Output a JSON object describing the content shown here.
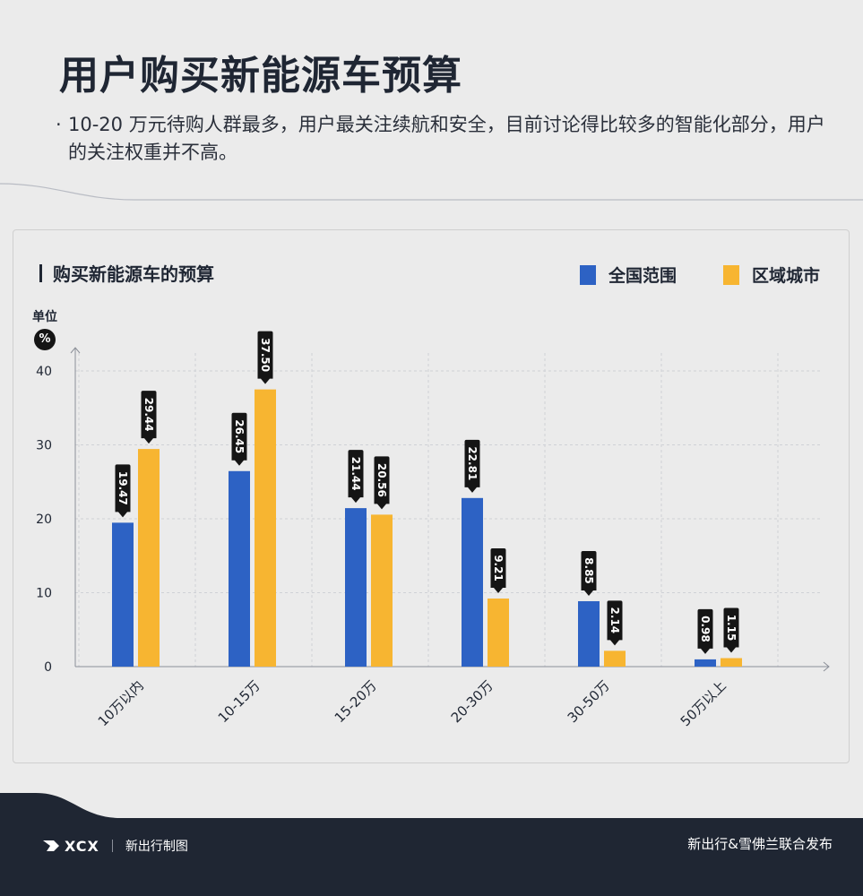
{
  "header": {
    "title": "用户购买新能源车预算",
    "bullet": "·",
    "description": "10-20 万元待购人群最多，用户最关注续航和安全，目前讨论得比较多的智能化部分，用户的关注权重并不高。"
  },
  "chart_header": {
    "title": "购买新能源车的预算",
    "unit_label": "单位",
    "unit_symbol": "%"
  },
  "colors": {
    "national": "#2d62c4",
    "regional": "#f7b531",
    "label_bg": "#151515",
    "footer_bg": "#1f2633"
  },
  "chart_data": {
    "type": "bar",
    "title": "购买新能源车的预算",
    "ylabel": "单位 %",
    "categories": [
      "10万以内",
      "10-15万",
      "15-20万",
      "20-30万",
      "30-50万",
      "50万以上"
    ],
    "series": [
      {
        "name": "全国范围",
        "values": [
          19.47,
          26.45,
          21.44,
          22.81,
          8.85,
          0.98
        ],
        "labels": [
          "19.47",
          "26.45",
          "21.44",
          "22.81",
          "8.85",
          "0.98"
        ]
      },
      {
        "name": "区域城市",
        "values": [
          29.44,
          37.5,
          20.56,
          9.21,
          2.14,
          1.15
        ],
        "labels": [
          "29.44",
          "37.50",
          "20.56",
          "9.21",
          "2.14",
          "1.15"
        ]
      }
    ],
    "y_ticks": [
      "0",
      "10",
      "20",
      "30",
      "40"
    ],
    "ylim": [
      0,
      40
    ],
    "grid": true,
    "legend_position": "top-right"
  },
  "footer": {
    "logo_text": "XCX",
    "left_text": "新出行制图",
    "right_text": "新出行&雪佛兰联合发布"
  }
}
